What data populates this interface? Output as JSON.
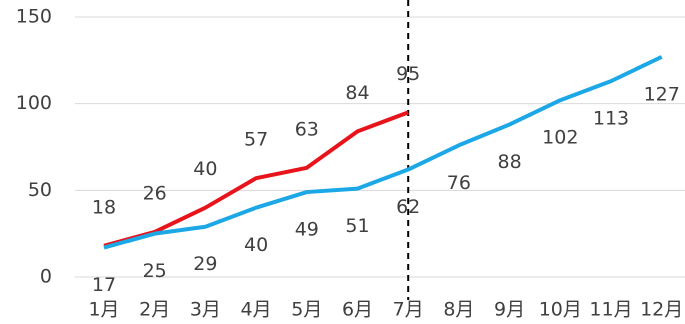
{
  "chart_data": {
    "type": "line",
    "categories": [
      "1月",
      "2月",
      "3月",
      "4月",
      "5月",
      "6月",
      "7月",
      "8月",
      "9月",
      "10月",
      "11月",
      "12月"
    ],
    "series": [
      {
        "color": "#e8141b",
        "values": [
          18,
          26,
          40,
          57,
          63,
          84,
          95,
          null,
          null,
          null,
          null,
          null
        ]
      },
      {
        "color": "#1ca8e6",
        "values": [
          17,
          25,
          29,
          40,
          49,
          51,
          62,
          76,
          88,
          102,
          113,
          127
        ]
      }
    ],
    "ylim": [
      0,
      150
    ],
    "yticks": [
      0,
      50,
      100,
      150
    ],
    "grid": true
  }
}
